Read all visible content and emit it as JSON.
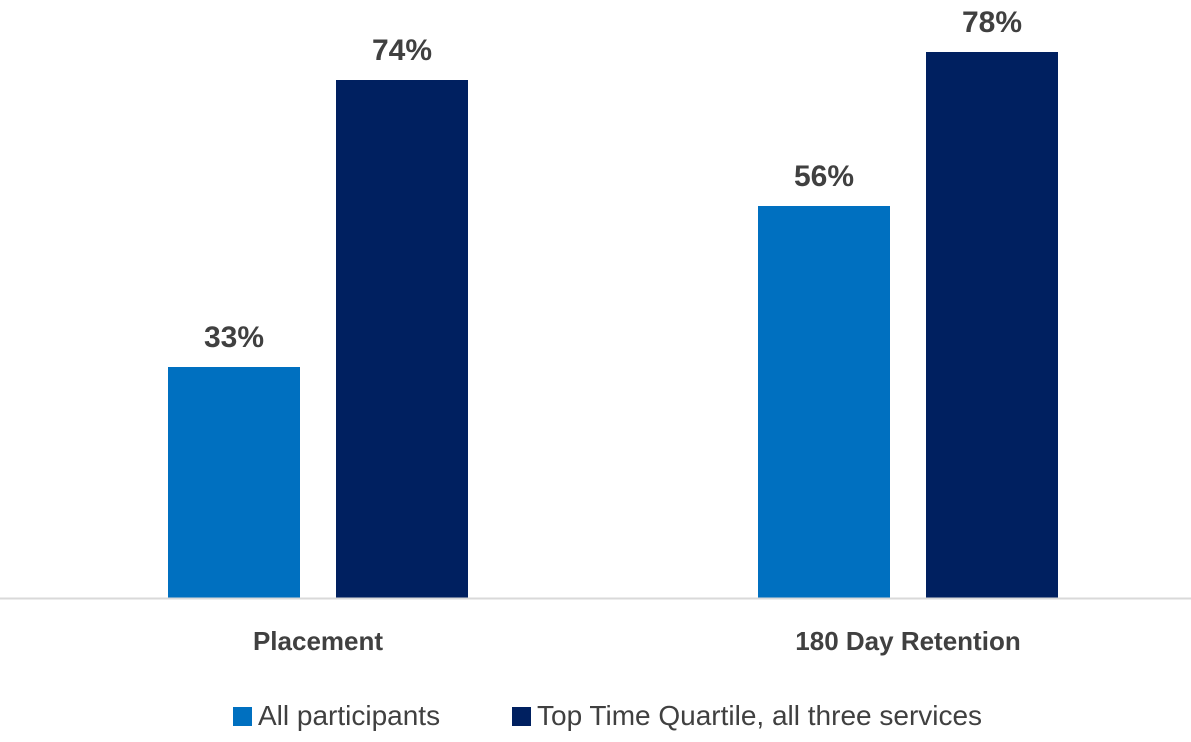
{
  "chart_data": {
    "type": "bar",
    "title": "",
    "xlabel": "",
    "ylabel": "",
    "categories": [
      "Placement",
      "180 Day Retention"
    ],
    "series": [
      {
        "name": "All participants",
        "values": [
          33,
          56
        ],
        "labels": [
          "33%",
          "56%"
        ],
        "color": "#0070C0"
      },
      {
        "name": "Top Time Quartile, all three services",
        "values": [
          74,
          78
        ],
        "labels": [
          "74%",
          "78%"
        ],
        "color": "#002060"
      }
    ],
    "ylim": [
      0,
      85
    ],
    "grid": false,
    "legend_position": "bottom",
    "axis_color": "#D9D9D9",
    "text_color": "#404040"
  }
}
